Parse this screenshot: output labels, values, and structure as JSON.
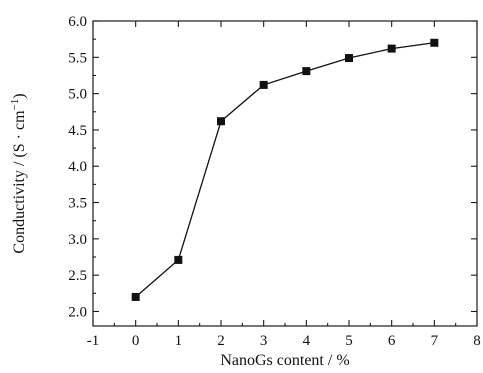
{
  "chart_data": {
    "type": "line",
    "xlabel": "NanoGs content / %",
    "ylabel": "Conductivity / (S · cm",
    "ylabel_exponent": "−1",
    "ylabel_suffix": ")",
    "xlim": [
      -1,
      8
    ],
    "ylim": [
      1.8,
      6.0
    ],
    "x_ticks": [
      "-1",
      "0",
      "1",
      "2",
      "3",
      "4",
      "5",
      "6",
      "7",
      "8"
    ],
    "y_ticks": [
      "2.0",
      "2.5",
      "3.0",
      "3.5",
      "4.0",
      "4.5",
      "5.0",
      "5.5",
      "6.0"
    ],
    "grid": false,
    "series": [
      {
        "marker": "square",
        "color": "#111111",
        "x": [
          0,
          1,
          2,
          3,
          4,
          5,
          6,
          7
        ],
        "values": [
          2.2,
          2.71,
          4.62,
          5.12,
          5.31,
          5.49,
          5.62,
          5.7
        ]
      }
    ]
  }
}
